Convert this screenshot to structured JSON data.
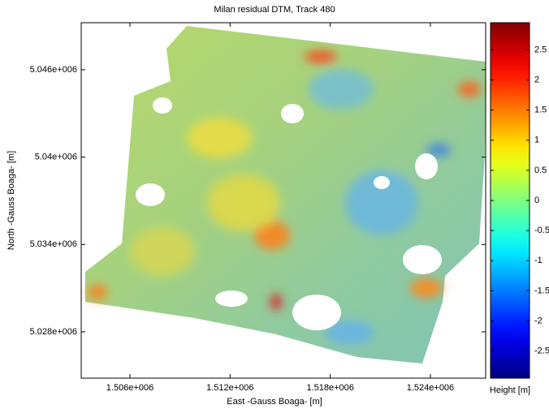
{
  "chart_data": {
    "type": "heatmap",
    "title": "Milan residual DTM, Track 480",
    "x_label": "East -Gauss Boaga- [m]",
    "y_label": "North -Gauss Boaga- [m]",
    "colorbar_label": "Height [m]",
    "colormap": "jet",
    "xlim": [
      1503080,
      1527310
    ],
    "ylim": [
      5024820,
      5049230
    ],
    "xticks": [
      {
        "value": 1506000,
        "label": "1.506e+006"
      },
      {
        "value": 1512000,
        "label": "1.512e+006"
      },
      {
        "value": 1518000,
        "label": "1.518e+006"
      },
      {
        "value": 1524000,
        "label": "1.524e+006"
      }
    ],
    "yticks": [
      {
        "value": 5028000,
        "label": "5.028e+006"
      },
      {
        "value": 5034000,
        "label": "5.034e+006"
      },
      {
        "value": 5040000,
        "label": "5.04e+006"
      },
      {
        "value": 5046000,
        "label": "5.046e+006"
      }
    ],
    "clim": [
      -2.95,
      2.95
    ],
    "cticks": [
      -2.5,
      -2,
      -1.5,
      -1,
      -0.5,
      0,
      0.5,
      1,
      1.5,
      2,
      2.5
    ]
  }
}
